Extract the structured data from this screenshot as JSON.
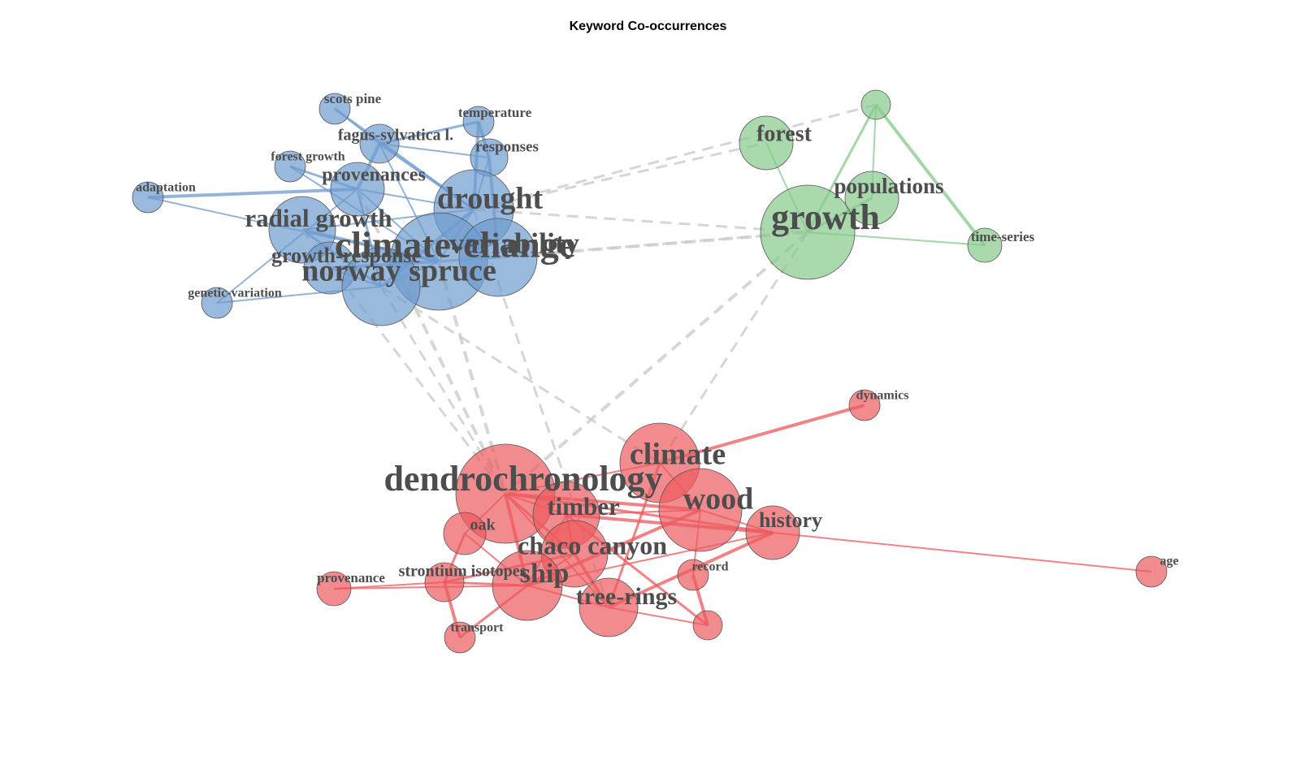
{
  "title": "Keyword Co-occurrences",
  "colors": {
    "blue": "#6d9bcf",
    "green": "#86c98a",
    "red": "#ec5a5e",
    "between": "#cccccc",
    "label": "#4d4d4d"
  },
  "clusters": [
    {
      "name": "blue",
      "nodes": [
        {
          "id": "scots pine",
          "label": "scots pine"
        },
        {
          "id": "temperature",
          "label": "temperature"
        },
        {
          "id": "fagus-sylvatica l.",
          "label": "fagus-sylvatica l."
        },
        {
          "id": "forest growth",
          "label": "forest growth"
        },
        {
          "id": "responses",
          "label": "responses"
        },
        {
          "id": "provenances",
          "label": "provenances"
        },
        {
          "id": "adaptation",
          "label": "adaptation"
        },
        {
          "id": "drought",
          "label": "drought"
        },
        {
          "id": "radial growth",
          "label": "radial growth"
        },
        {
          "id": "climate-change",
          "label": "climate-change"
        },
        {
          "id": "variability",
          "label": "variability"
        },
        {
          "id": "growth-response",
          "label": "growth-response"
        },
        {
          "id": "norway spruce",
          "label": "norway spruce"
        },
        {
          "id": "genetic-variation",
          "label": "genetic-variation"
        }
      ]
    },
    {
      "name": "green",
      "nodes": [
        {
          "id": "forest",
          "label": "forest"
        },
        {
          "id": "green-unlabeled",
          "label": ""
        },
        {
          "id": "populations",
          "label": "populations"
        },
        {
          "id": "growth",
          "label": "growth"
        },
        {
          "id": "time-series",
          "label": "time-series"
        }
      ]
    },
    {
      "name": "red",
      "nodes": [
        {
          "id": "dynamics",
          "label": "dynamics"
        },
        {
          "id": "climate",
          "label": "climate"
        },
        {
          "id": "dendrochronology",
          "label": "dendrochronology"
        },
        {
          "id": "wood",
          "label": "wood"
        },
        {
          "id": "timber",
          "label": "timber"
        },
        {
          "id": "history",
          "label": "history"
        },
        {
          "id": "oak",
          "label": "oak"
        },
        {
          "id": "chaco canyon",
          "label": "chaco canyon"
        },
        {
          "id": "age",
          "label": "age"
        },
        {
          "id": "record",
          "label": "record"
        },
        {
          "id": "provenance",
          "label": "provenance"
        },
        {
          "id": "strontium isotopes",
          "label": "strontium isotopes"
        },
        {
          "id": "ship",
          "label": "ship"
        },
        {
          "id": "tree-rings",
          "label": "tree-rings"
        },
        {
          "id": "transport",
          "label": "transport"
        },
        {
          "id": "red-unlabeled",
          "label": ""
        }
      ]
    }
  ],
  "edges": [
    [
      "adaptation",
      "provenances"
    ],
    [
      "adaptation",
      "climate-change"
    ],
    [
      "scots pine",
      "fagus-sylvatica l."
    ],
    [
      "temperature",
      "fagus-sylvatica l."
    ],
    [
      "temperature",
      "responses"
    ],
    [
      "fagus-sylvatica l.",
      "responses"
    ],
    [
      "fagus-sylvatica l.",
      "drought"
    ],
    [
      "fagus-sylvatica l.",
      "climate-change"
    ],
    [
      "fagus-sylvatica l.",
      "provenances"
    ],
    [
      "forest growth",
      "provenances"
    ],
    [
      "forest growth",
      "climate-change"
    ],
    [
      "responses",
      "drought"
    ],
    [
      "responses",
      "variability"
    ],
    [
      "provenances",
      "drought"
    ],
    [
      "provenances",
      "climate-change"
    ],
    [
      "provenances",
      "norway spruce"
    ],
    [
      "radial growth",
      "climate-change"
    ],
    [
      "radial growth",
      "drought"
    ],
    [
      "radial growth",
      "norway spruce"
    ],
    [
      "drought",
      "climate-change"
    ],
    [
      "drought",
      "norway spruce"
    ],
    [
      "climate-change",
      "variability"
    ],
    [
      "climate-change",
      "norway spruce"
    ],
    [
      "growth-response",
      "norway spruce"
    ],
    [
      "growth-response",
      "climate-change"
    ],
    [
      "genetic-variation",
      "provenances"
    ],
    [
      "genetic-variation",
      "norway spruce"
    ],
    [
      "scots pine",
      "drought"
    ],
    [
      "temperature",
      "drought"
    ],
    [
      "forest",
      "growth"
    ],
    [
      "green-unlabeled",
      "growth"
    ],
    [
      "green-unlabeled",
      "populations"
    ],
    [
      "green-unlabeled",
      "time-series"
    ],
    [
      "populations",
      "growth"
    ],
    [
      "growth",
      "time-series"
    ],
    [
      "dendrochronology",
      "climate"
    ],
    [
      "dendrochronology",
      "wood"
    ],
    [
      "dendrochronology",
      "timber"
    ],
    [
      "dendrochronology",
      "oak"
    ],
    [
      "dendrochronology",
      "chaco canyon"
    ],
    [
      "dendrochronology",
      "ship"
    ],
    [
      "dendrochronology",
      "tree-rings"
    ],
    [
      "dendrochronology",
      "history"
    ],
    [
      "climate",
      "wood"
    ],
    [
      "climate",
      "dynamics"
    ],
    [
      "climate",
      "tree-rings"
    ],
    [
      "wood",
      "timber"
    ],
    [
      "wood",
      "history"
    ],
    [
      "wood",
      "ship"
    ],
    [
      "wood",
      "record"
    ],
    [
      "timber",
      "ship"
    ],
    [
      "timber",
      "chaco canyon"
    ],
    [
      "timber",
      "history"
    ],
    [
      "oak",
      "ship"
    ],
    [
      "oak",
      "strontium isotopes"
    ],
    [
      "chaco canyon",
      "ship"
    ],
    [
      "chaco canyon",
      "tree-rings"
    ],
    [
      "chaco canyon",
      "strontium isotopes"
    ],
    [
      "history",
      "age"
    ],
    [
      "history",
      "ship"
    ],
    [
      "history",
      "tree-rings"
    ],
    [
      "provenance",
      "strontium isotopes"
    ],
    [
      "provenance",
      "ship"
    ],
    [
      "strontium isotopes",
      "ship"
    ],
    [
      "strontium isotopes",
      "transport"
    ],
    [
      "ship",
      "tree-rings"
    ],
    [
      "ship",
      "transport"
    ],
    [
      "tree-rings",
      "red-unlabeled"
    ],
    [
      "record",
      "red-unlabeled"
    ],
    [
      "timber",
      "red-unlabeled"
    ],
    [
      "drought",
      "forest"
    ],
    [
      "drought",
      "growth"
    ],
    [
      "variability",
      "growth"
    ],
    [
      "climate-change",
      "growth"
    ],
    [
      "norway spruce",
      "dendrochronology"
    ],
    [
      "climate-change",
      "dendrochronology"
    ],
    [
      "radial growth",
      "dendrochronology"
    ],
    [
      "growth",
      "climate"
    ],
    [
      "growth",
      "dendrochronology"
    ],
    [
      "drought",
      "tree-rings"
    ],
    [
      "norway spruce",
      "climate"
    ],
    [
      "provenances",
      "dendrochronology"
    ],
    [
      "green-unlabeled",
      "drought"
    ]
  ]
}
